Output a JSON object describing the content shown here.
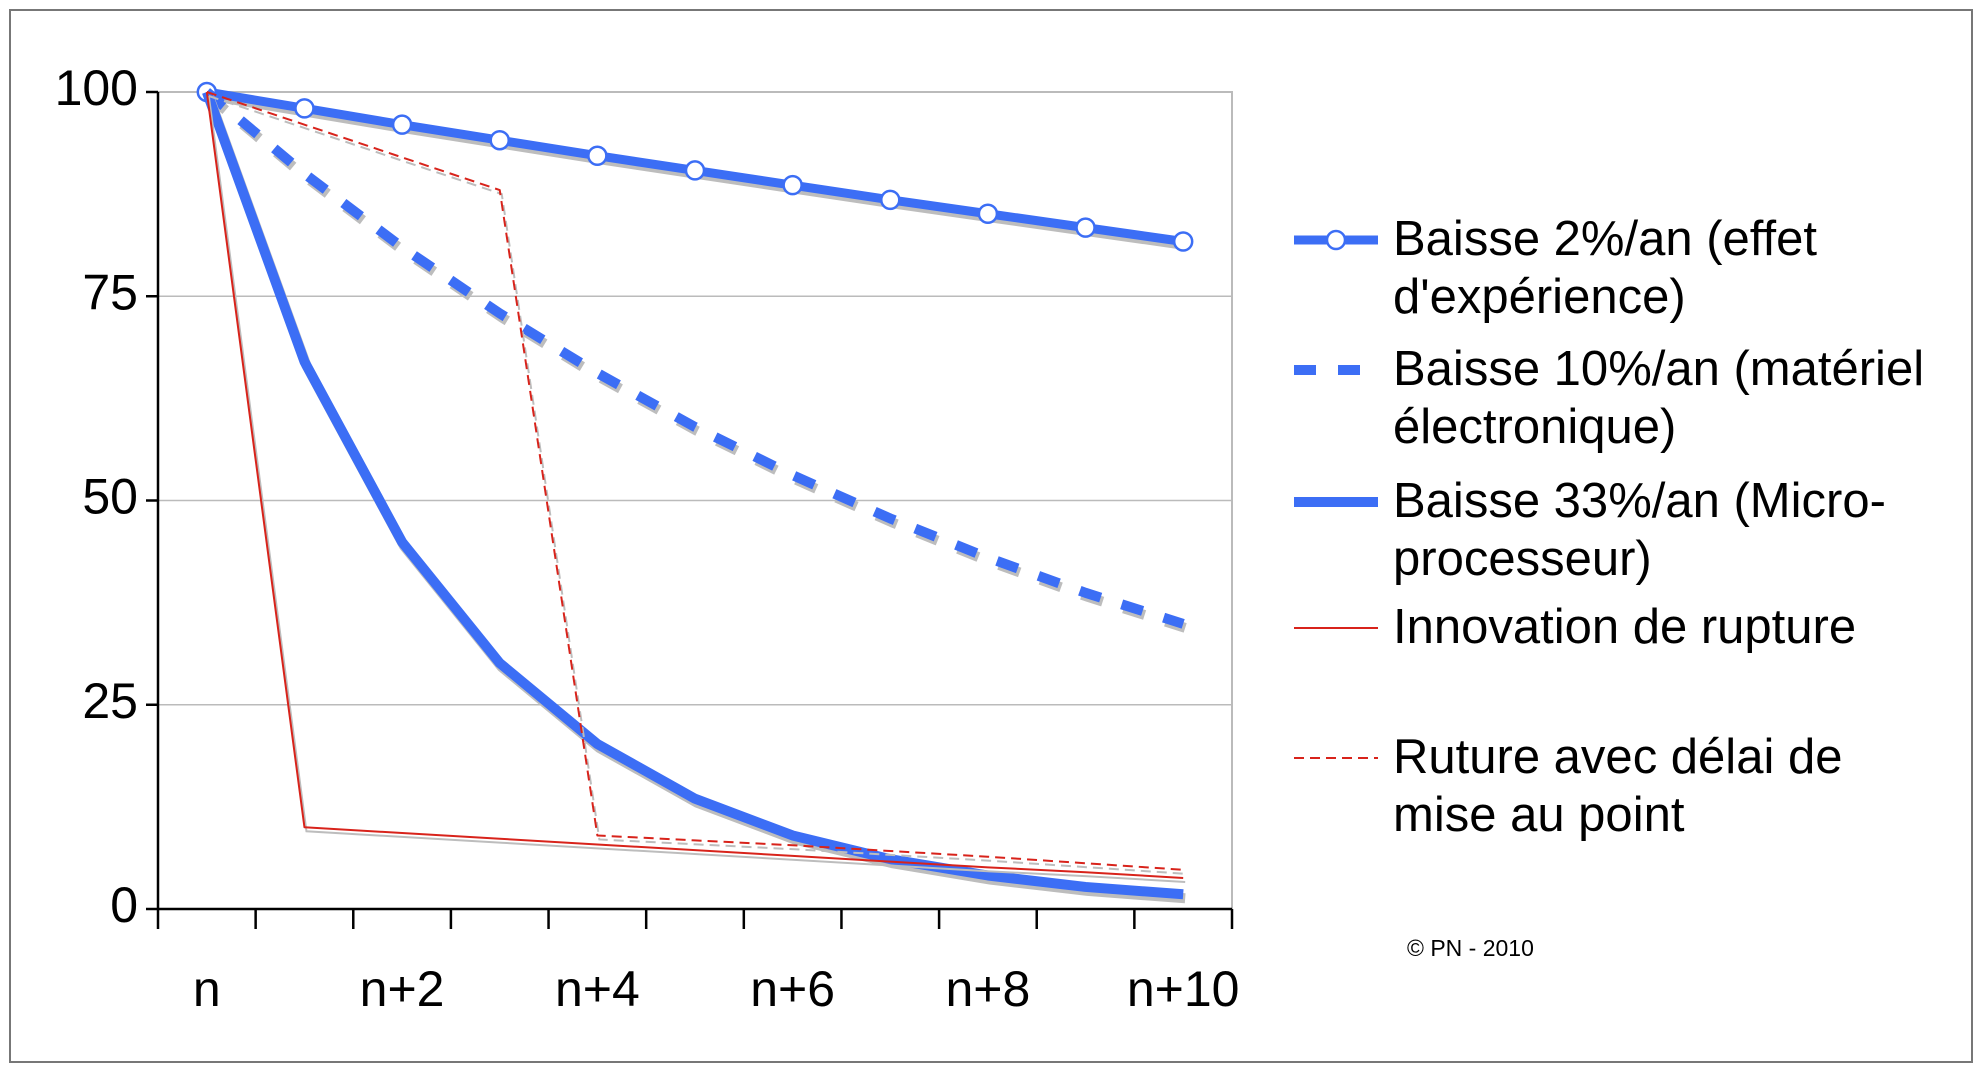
{
  "chart_data": {
    "type": "line",
    "categories": [
      "n",
      null,
      "n+2",
      null,
      "n+4",
      null,
      "n+6",
      null,
      "n+8",
      null,
      "n+10"
    ],
    "series": [
      {
        "name": "Baisse 2%/an (effet d'expérience)",
        "color": "#3c6ef5",
        "width": 9,
        "dash": "solid",
        "marker": "circle",
        "values": [
          100,
          98,
          96,
          94.1,
          92.2,
          90.4,
          88.6,
          86.8,
          85.1,
          83.4,
          81.7
        ]
      },
      {
        "name": "Baisse 10%/an (matériel électronique)",
        "color": "#3c6ef5",
        "width": 10,
        "dash": "dashed",
        "values": [
          100,
          90,
          81,
          72.9,
          65.6,
          59,
          53.1,
          47.8,
          43,
          38.7,
          34.9
        ]
      },
      {
        "name": "Baisse 33%/an (Micro-processeur)",
        "color": "#3c6ef5",
        "width": 10,
        "dash": "solid",
        "values": [
          100,
          67,
          44.9,
          30.1,
          20.2,
          13.5,
          9,
          6.1,
          4.1,
          2.7,
          1.8
        ]
      },
      {
        "name": "Innovation de rupture",
        "color": "#d8231b",
        "width": 2,
        "dash": "solid",
        "values": [
          100,
          10,
          9.3,
          8.6,
          7.9,
          7.2,
          6.5,
          5.8,
          5.1,
          4.5,
          3.8
        ]
      },
      {
        "name": "Ruture avec délai de mise au point",
        "color": "#d8231b",
        "width": 2,
        "dash": "dashed",
        "values": [
          100,
          96,
          92,
          88,
          9,
          8.4,
          7.8,
          7.1,
          6.4,
          5.6,
          4.8
        ]
      }
    ],
    "ylim": [
      0,
      100
    ],
    "yticks": [
      0,
      25,
      50,
      75,
      100
    ],
    "grid": true,
    "legend_position": "right",
    "annotation": "© PN - 2010"
  }
}
